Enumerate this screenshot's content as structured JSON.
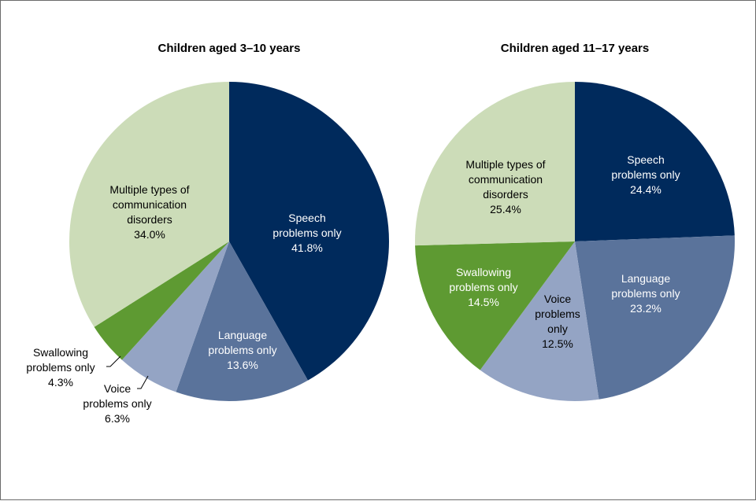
{
  "chart_data": [
    {
      "type": "pie",
      "title": "Children aged 3–10 years",
      "slices": [
        {
          "label": [
            "Speech",
            "problems only",
            "41.8%"
          ],
          "value": 41.8,
          "color": "#002a5c",
          "text_color": "#ffffff"
        },
        {
          "label": [
            "Language",
            "problems only",
            "13.6%"
          ],
          "value": 13.6,
          "color": "#5a739b",
          "text_color": "#ffffff"
        },
        {
          "label": [
            "Voice",
            "problems only",
            "6.3%"
          ],
          "value": 6.3,
          "color": "#94a4c4",
          "text_color": "#000000"
        },
        {
          "label": [
            "Swallowing",
            "problems only",
            "4.3%"
          ],
          "value": 4.3,
          "color": "#5e9a32",
          "text_color": "#000000"
        },
        {
          "label": [
            "Multiple types of",
            "communication",
            "disorders",
            "34.0%"
          ],
          "value": 34.0,
          "color": "#ccdcb8",
          "text_color": "#000000"
        }
      ]
    },
    {
      "type": "pie",
      "title": "Children aged 11–17 years",
      "slices": [
        {
          "label": [
            "Speech",
            "problems only",
            "24.4%"
          ],
          "value": 24.4,
          "color": "#002a5c",
          "text_color": "#ffffff"
        },
        {
          "label": [
            "Language",
            "problems only",
            "23.2%"
          ],
          "value": 23.2,
          "color": "#5a739b",
          "text_color": "#ffffff"
        },
        {
          "label": [
            "Voice",
            "problems",
            "only",
            "12.5%"
          ],
          "value": 12.5,
          "color": "#94a4c4",
          "text_color": "#000000"
        },
        {
          "label": [
            "Swallowing",
            "problems only",
            "14.5%"
          ],
          "value": 14.5,
          "color": "#5e9a32",
          "text_color": "#ffffff"
        },
        {
          "label": [
            "Multiple types of",
            "communication",
            "disorders",
            "25.4%"
          ],
          "value": 25.4,
          "color": "#ccdcb8",
          "text_color": "#000000"
        }
      ]
    }
  ]
}
